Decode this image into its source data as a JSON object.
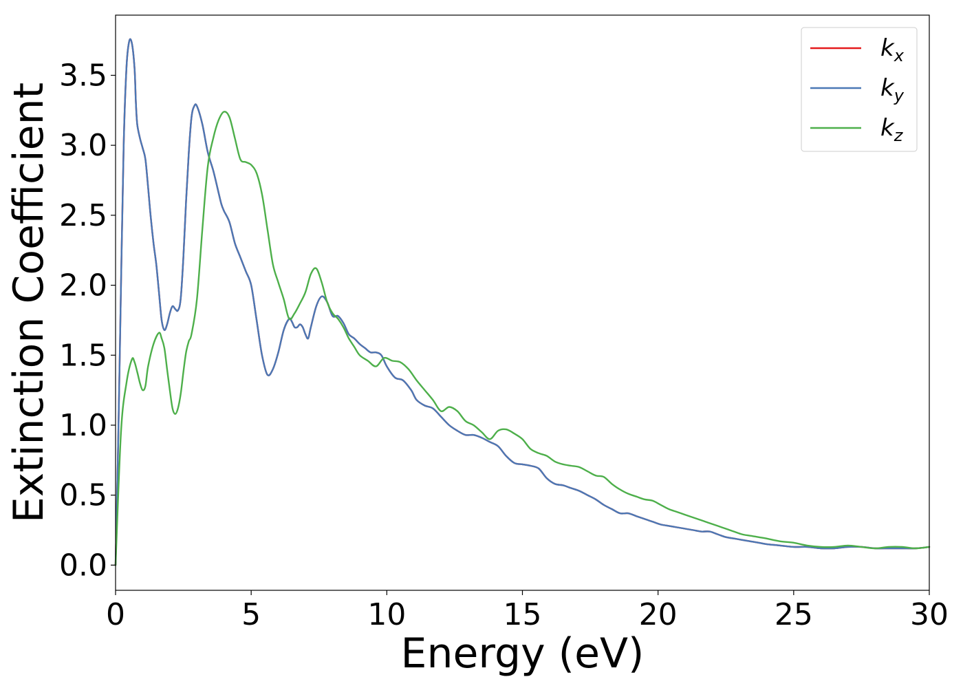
{
  "chart_data": {
    "type": "line",
    "title": "",
    "xlabel": "Energy (eV)",
    "ylabel": "Extinction Coefficient",
    "xlim": [
      0,
      30
    ],
    "ylim": [
      -0.18,
      3.93
    ],
    "xticks": [
      0,
      5,
      10,
      15,
      20,
      25,
      30
    ],
    "xtick_labels": [
      "0",
      "5",
      "10",
      "15",
      "20",
      "25",
      "30"
    ],
    "yticks": [
      0.0,
      0.5,
      1.0,
      1.5,
      2.0,
      2.5,
      3.0,
      3.5
    ],
    "ytick_labels": [
      "0.0",
      "0.5",
      "1.0",
      "1.5",
      "2.0",
      "2.5",
      "3.0",
      "3.5"
    ],
    "grid": false,
    "legend_position": "top-right",
    "series": [
      {
        "name": "k_x",
        "label_base": "k",
        "label_sub": "x",
        "color": "#e41a1c",
        "x": [
          0,
          0.1,
          0.2,
          0.3,
          0.4,
          0.5,
          0.6,
          0.7,
          0.75,
          0.8,
          0.9,
          1.0,
          1.1,
          1.2,
          1.3,
          1.4,
          1.5,
          1.6,
          1.7,
          1.8,
          1.9,
          2.0,
          2.1,
          2.2,
          2.3,
          2.4,
          2.5,
          2.6,
          2.7,
          2.8,
          2.9,
          3.0,
          3.2,
          3.4,
          3.6,
          3.8,
          3.9,
          4.0,
          4.2,
          4.4,
          4.6,
          4.8,
          5.0,
          5.2,
          5.4,
          5.6,
          5.8,
          6.0,
          6.2,
          6.4,
          6.5,
          6.6,
          6.7,
          6.8,
          6.9,
          7.0,
          7.1,
          7.2,
          7.4,
          7.6,
          7.8,
          8.0,
          8.2,
          8.4,
          8.6,
          8.8,
          9.0,
          9.2,
          9.4,
          9.6,
          9.8,
          10.0,
          10.3,
          10.6,
          10.9,
          11.1,
          11.4,
          11.7,
          12.0,
          12.3,
          12.6,
          12.9,
          13.2,
          13.5,
          13.8,
          14.1,
          14.4,
          14.7,
          15.0,
          15.3,
          15.6,
          15.9,
          16.2,
          16.5,
          16.8,
          17.1,
          17.4,
          17.7,
          18.0,
          18.3,
          18.6,
          18.9,
          19.2,
          19.5,
          19.8,
          20.1,
          20.4,
          20.7,
          21.0,
          21.3,
          21.6,
          21.9,
          22.2,
          22.5,
          22.8,
          23.1,
          23.4,
          23.7,
          24.0,
          24.5,
          25.0,
          25.5,
          26.0,
          26.5,
          27.0,
          27.5,
          28.0,
          28.5,
          29.0,
          29.5,
          30.0
        ],
        "y": [
          0.0,
          0.9,
          2.0,
          3.0,
          3.55,
          3.74,
          3.73,
          3.55,
          3.3,
          3.15,
          3.05,
          2.98,
          2.9,
          2.7,
          2.48,
          2.3,
          2.15,
          1.95,
          1.75,
          1.68,
          1.72,
          1.8,
          1.85,
          1.83,
          1.82,
          1.9,
          2.2,
          2.6,
          2.95,
          3.2,
          3.28,
          3.28,
          3.15,
          2.95,
          2.82,
          2.66,
          2.58,
          2.53,
          2.45,
          2.3,
          2.2,
          2.1,
          2.0,
          1.75,
          1.5,
          1.36,
          1.4,
          1.52,
          1.68,
          1.76,
          1.74,
          1.7,
          1.7,
          1.72,
          1.7,
          1.65,
          1.62,
          1.7,
          1.85,
          1.92,
          1.88,
          1.78,
          1.78,
          1.73,
          1.65,
          1.62,
          1.58,
          1.55,
          1.52,
          1.52,
          1.5,
          1.42,
          1.34,
          1.32,
          1.25,
          1.18,
          1.14,
          1.12,
          1.06,
          1.0,
          0.96,
          0.93,
          0.93,
          0.91,
          0.88,
          0.85,
          0.78,
          0.73,
          0.72,
          0.71,
          0.69,
          0.62,
          0.58,
          0.57,
          0.55,
          0.53,
          0.5,
          0.47,
          0.43,
          0.4,
          0.37,
          0.37,
          0.35,
          0.33,
          0.31,
          0.29,
          0.28,
          0.27,
          0.26,
          0.25,
          0.24,
          0.24,
          0.22,
          0.2,
          0.19,
          0.18,
          0.17,
          0.16,
          0.15,
          0.14,
          0.13,
          0.13,
          0.12,
          0.12,
          0.13,
          0.13,
          0.12,
          0.12,
          0.12,
          0.12,
          0.13
        ]
      },
      {
        "name": "k_y",
        "label_base": "k",
        "label_sub": "y",
        "color": "#4a78b5",
        "x": [
          0,
          0.1,
          0.2,
          0.3,
          0.4,
          0.5,
          0.6,
          0.7,
          0.75,
          0.8,
          0.9,
          1.0,
          1.1,
          1.2,
          1.3,
          1.4,
          1.5,
          1.6,
          1.7,
          1.8,
          1.9,
          2.0,
          2.1,
          2.2,
          2.3,
          2.4,
          2.5,
          2.6,
          2.7,
          2.8,
          2.9,
          3.0,
          3.2,
          3.4,
          3.6,
          3.8,
          3.9,
          4.0,
          4.2,
          4.4,
          4.6,
          4.8,
          5.0,
          5.2,
          5.4,
          5.6,
          5.8,
          6.0,
          6.2,
          6.4,
          6.5,
          6.6,
          6.7,
          6.8,
          6.9,
          7.0,
          7.1,
          7.2,
          7.4,
          7.6,
          7.8,
          8.0,
          8.2,
          8.4,
          8.6,
          8.8,
          9.0,
          9.2,
          9.4,
          9.6,
          9.8,
          10.0,
          10.3,
          10.6,
          10.9,
          11.1,
          11.4,
          11.7,
          12.0,
          12.3,
          12.6,
          12.9,
          13.2,
          13.5,
          13.8,
          14.1,
          14.4,
          14.7,
          15.0,
          15.3,
          15.6,
          15.9,
          16.2,
          16.5,
          16.8,
          17.1,
          17.4,
          17.7,
          18.0,
          18.3,
          18.6,
          18.9,
          19.2,
          19.5,
          19.8,
          20.1,
          20.4,
          20.7,
          21.0,
          21.3,
          21.6,
          21.9,
          22.2,
          22.5,
          22.8,
          23.1,
          23.4,
          23.7,
          24.0,
          24.5,
          25.0,
          25.5,
          26.0,
          26.5,
          27.0,
          27.5,
          28.0,
          28.5,
          29.0,
          29.5,
          30.0
        ],
        "y": [
          0.0,
          0.9,
          2.0,
          3.0,
          3.55,
          3.74,
          3.73,
          3.55,
          3.3,
          3.15,
          3.05,
          2.98,
          2.9,
          2.7,
          2.48,
          2.3,
          2.15,
          1.95,
          1.75,
          1.68,
          1.72,
          1.8,
          1.85,
          1.83,
          1.82,
          1.9,
          2.2,
          2.6,
          2.95,
          3.2,
          3.28,
          3.28,
          3.15,
          2.95,
          2.82,
          2.66,
          2.58,
          2.53,
          2.45,
          2.3,
          2.2,
          2.1,
          2.0,
          1.75,
          1.5,
          1.36,
          1.4,
          1.52,
          1.68,
          1.76,
          1.74,
          1.7,
          1.7,
          1.72,
          1.7,
          1.65,
          1.62,
          1.7,
          1.85,
          1.92,
          1.88,
          1.78,
          1.78,
          1.73,
          1.65,
          1.62,
          1.58,
          1.55,
          1.52,
          1.52,
          1.5,
          1.42,
          1.34,
          1.32,
          1.25,
          1.18,
          1.14,
          1.12,
          1.06,
          1.0,
          0.96,
          0.93,
          0.93,
          0.91,
          0.88,
          0.85,
          0.78,
          0.73,
          0.72,
          0.71,
          0.69,
          0.62,
          0.58,
          0.57,
          0.55,
          0.53,
          0.5,
          0.47,
          0.43,
          0.4,
          0.37,
          0.37,
          0.35,
          0.33,
          0.31,
          0.29,
          0.28,
          0.27,
          0.26,
          0.25,
          0.24,
          0.24,
          0.22,
          0.2,
          0.19,
          0.18,
          0.17,
          0.16,
          0.15,
          0.14,
          0.13,
          0.13,
          0.12,
          0.12,
          0.13,
          0.13,
          0.12,
          0.12,
          0.12,
          0.12,
          0.13
        ]
      },
      {
        "name": "k_z",
        "label_base": "k",
        "label_sub": "z",
        "color": "#4daf4a",
        "x": [
          0,
          0.2,
          0.4,
          0.6,
          0.7,
          0.8,
          0.9,
          1.0,
          1.1,
          1.2,
          1.4,
          1.6,
          1.7,
          1.8,
          1.9,
          2.0,
          2.1,
          2.2,
          2.3,
          2.4,
          2.5,
          2.6,
          2.7,
          2.8,
          3.0,
          3.2,
          3.4,
          3.6,
          3.8,
          4.0,
          4.2,
          4.4,
          4.6,
          4.8,
          5.0,
          5.2,
          5.4,
          5.6,
          5.8,
          6.0,
          6.2,
          6.4,
          6.6,
          6.8,
          7.0,
          7.2,
          7.4,
          7.6,
          7.8,
          8.0,
          8.2,
          8.4,
          8.6,
          8.8,
          9.0,
          9.3,
          9.6,
          9.9,
          10.2,
          10.5,
          10.8,
          11.1,
          11.4,
          11.7,
          12.0,
          12.3,
          12.6,
          12.9,
          13.2,
          13.5,
          13.8,
          14.1,
          14.4,
          14.7,
          15.0,
          15.3,
          15.6,
          15.9,
          16.2,
          16.5,
          16.8,
          17.1,
          17.4,
          17.7,
          18.0,
          18.3,
          18.6,
          18.9,
          19.2,
          19.5,
          19.8,
          20.1,
          20.4,
          20.7,
          21.0,
          21.3,
          21.6,
          21.9,
          22.2,
          22.5,
          22.8,
          23.1,
          23.4,
          23.7,
          24.0,
          24.5,
          25.0,
          25.5,
          26.0,
          26.5,
          27.0,
          27.5,
          28.0,
          28.5,
          29.0,
          29.5,
          30.0
        ],
        "y": [
          0.0,
          0.95,
          1.3,
          1.47,
          1.45,
          1.38,
          1.3,
          1.25,
          1.28,
          1.42,
          1.58,
          1.66,
          1.62,
          1.55,
          1.4,
          1.25,
          1.12,
          1.08,
          1.12,
          1.22,
          1.38,
          1.52,
          1.6,
          1.65,
          1.9,
          2.4,
          2.85,
          3.05,
          3.18,
          3.24,
          3.2,
          3.05,
          2.9,
          2.88,
          2.86,
          2.8,
          2.65,
          2.4,
          2.15,
          2.02,
          1.9,
          1.76,
          1.8,
          1.87,
          1.95,
          2.08,
          2.12,
          2.02,
          1.88,
          1.8,
          1.76,
          1.7,
          1.62,
          1.56,
          1.5,
          1.46,
          1.42,
          1.48,
          1.46,
          1.45,
          1.4,
          1.32,
          1.25,
          1.18,
          1.1,
          1.13,
          1.1,
          1.03,
          1.0,
          0.95,
          0.9,
          0.96,
          0.97,
          0.94,
          0.9,
          0.83,
          0.8,
          0.78,
          0.74,
          0.72,
          0.71,
          0.7,
          0.67,
          0.64,
          0.63,
          0.58,
          0.54,
          0.51,
          0.49,
          0.47,
          0.46,
          0.43,
          0.4,
          0.38,
          0.36,
          0.34,
          0.32,
          0.3,
          0.28,
          0.26,
          0.24,
          0.22,
          0.21,
          0.2,
          0.19,
          0.17,
          0.16,
          0.14,
          0.13,
          0.13,
          0.14,
          0.13,
          0.12,
          0.13,
          0.13,
          0.12,
          0.13
        ]
      }
    ]
  }
}
